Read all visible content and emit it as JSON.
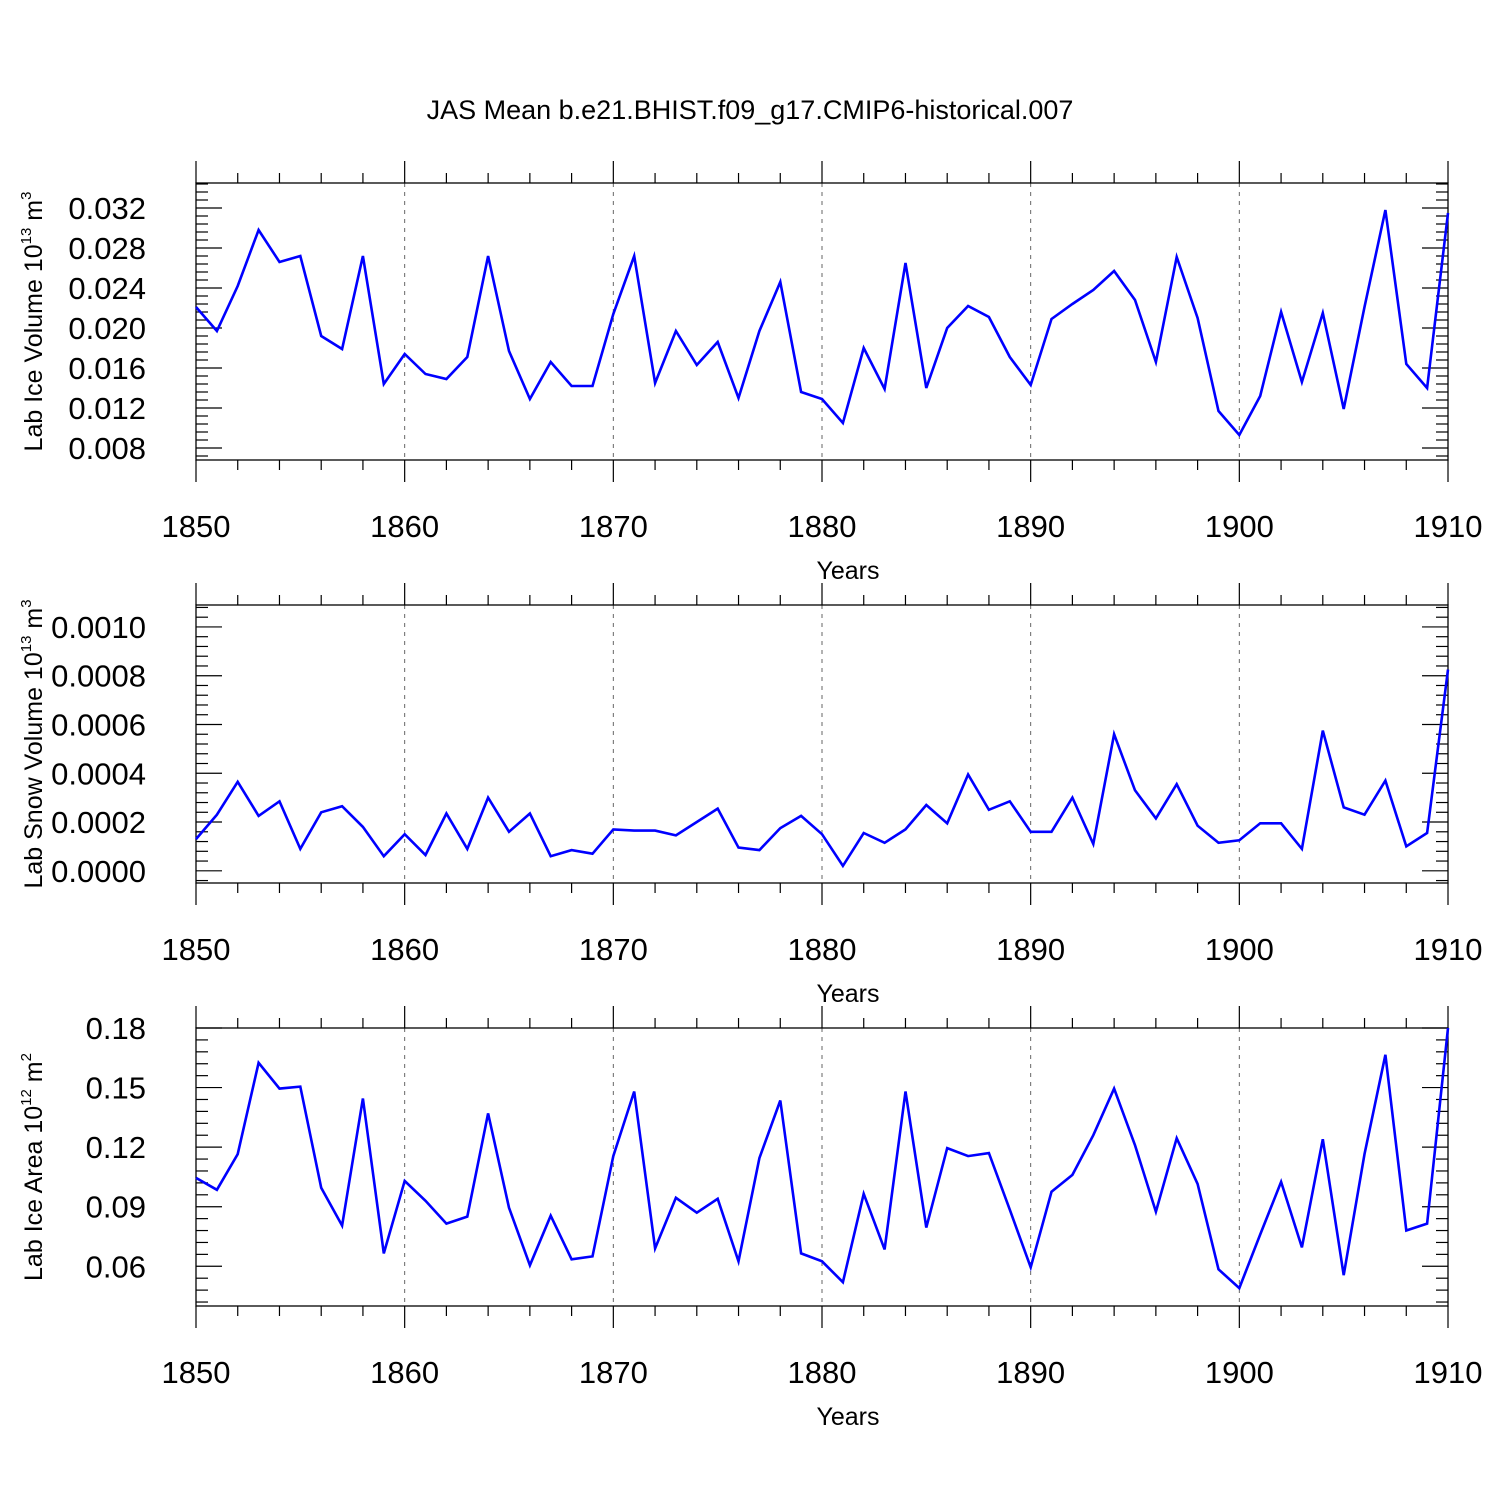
{
  "chart_data": [
    {
      "type": "line",
      "title": "JAS Mean b.e21.BHIST.f09_g17.CMIP6-historical.007",
      "xlabel": "Years",
      "ylabel": {
        "text": "Lab Ice Volume 10",
        "exp": "13",
        "unit": " m",
        "unit_exp": "3"
      },
      "xlim": [
        1850,
        1910
      ],
      "ylim": [
        0.0068,
        0.0345
      ],
      "x_ticks": [
        1850,
        1860,
        1870,
        1880,
        1890,
        1900,
        1910
      ],
      "x_tick_labels": [
        "1850",
        "1860",
        "1870",
        "1880",
        "1890",
        "1900",
        "1910"
      ],
      "y_ticks": [
        0.008,
        0.012,
        0.016,
        0.02,
        0.024,
        0.028,
        0.032
      ],
      "y_tick_labels": [
        "0.008",
        "0.012",
        "0.016",
        "0.020",
        "0.024",
        "0.028",
        "0.032"
      ],
      "grid": "vertical dashed at major x ticks",
      "series": [
        {
          "name": "Lab Ice Volume",
          "color": "#0000ff",
          "values": [
            0.0221,
            0.0197,
            0.0242,
            0.0298,
            0.0266,
            0.0272,
            0.0192,
            0.0179,
            0.0272,
            0.0144,
            0.0174,
            0.0154,
            0.0149,
            0.0171,
            0.0272,
            0.0177,
            0.0129,
            0.0166,
            0.0142,
            0.0142,
            0.0214,
            0.0272,
            0.0145,
            0.0197,
            0.0163,
            0.0186,
            0.013,
            0.0197,
            0.0246,
            0.0136,
            0.0129,
            0.0105,
            0.018,
            0.0139,
            0.0265,
            0.014,
            0.02,
            0.0222,
            0.0211,
            0.0171,
            0.0143,
            0.0209,
            0.0224,
            0.0238,
            0.0257,
            0.0228,
            0.0166,
            0.0271,
            0.021,
            0.0117,
            0.0093,
            0.0132,
            0.0216,
            0.0146,
            0.0215,
            0.0119,
            0.0221,
            0.0318,
            0.0164,
            0.014,
            0.0315
          ]
        }
      ]
    },
    {
      "type": "line",
      "xlabel": "Years",
      "ylabel": {
        "text": "Lab Snow Volume 10",
        "exp": "13",
        "unit": " m",
        "unit_exp": "3"
      },
      "xlim": [
        1850,
        1910
      ],
      "ylim": [
        -5e-05,
        0.00109
      ],
      "x_ticks": [
        1850,
        1860,
        1870,
        1880,
        1890,
        1900,
        1910
      ],
      "x_tick_labels": [
        "1850",
        "1860",
        "1870",
        "1880",
        "1890",
        "1900",
        "1910"
      ],
      "y_ticks": [
        0.0,
        0.0002,
        0.0004,
        0.0006,
        0.0008,
        0.001
      ],
      "y_tick_labels": [
        "0.0000",
        "0.0002",
        "0.0004",
        "0.0006",
        "0.0008",
        "0.0010"
      ],
      "grid": "vertical dashed at major x ticks",
      "series": [
        {
          "name": "Lab Snow Volume",
          "color": "#0000ff",
          "values": [
            0.00013,
            0.00023,
            0.000365,
            0.000225,
            0.000285,
            9e-05,
            0.00024,
            0.000265,
            0.00018,
            6e-05,
            0.00015,
            6.5e-05,
            0.000235,
            9e-05,
            0.0003,
            0.00016,
            0.000235,
            6e-05,
            8.5e-05,
            7e-05,
            0.00017,
            0.000165,
            0.000165,
            0.000145,
            0.0002,
            0.000255,
            9.5e-05,
            8.5e-05,
            0.000175,
            0.000225,
            0.00015,
            2e-05,
            0.000155,
            0.000115,
            0.00017,
            0.00027,
            0.000195,
            0.000395,
            0.00025,
            0.000285,
            0.00016,
            0.00016,
            0.0003,
            0.00011,
            0.00056,
            0.00033,
            0.000215,
            0.000355,
            0.000185,
            0.000115,
            0.000125,
            0.000195,
            0.000195,
            9e-05,
            0.000575,
            0.00026,
            0.00023,
            0.00037,
            0.0001,
            0.000155,
            0.000825
          ]
        }
      ]
    },
    {
      "type": "line",
      "xlabel": "Years",
      "ylabel": {
        "text": "Lab Ice Area 10",
        "exp": "12",
        "unit": " m",
        "unit_exp": "2"
      },
      "xlim": [
        1850,
        1910
      ],
      "ylim": [
        0.04,
        0.18
      ],
      "x_ticks": [
        1850,
        1860,
        1870,
        1880,
        1890,
        1900,
        1910
      ],
      "x_tick_labels": [
        "1850",
        "1860",
        "1870",
        "1880",
        "1890",
        "1900",
        "1910"
      ],
      "y_ticks": [
        0.06,
        0.09,
        0.12,
        0.15,
        0.18
      ],
      "y_tick_labels": [
        "0.06",
        "0.09",
        "0.12",
        "0.15",
        "0.18"
      ],
      "grid": "vertical dashed at major x ticks",
      "series": [
        {
          "name": "Lab Ice Area",
          "color": "#0000ff",
          "values": [
            0.1045,
            0.0985,
            0.1165,
            0.1625,
            0.1495,
            0.1505,
            0.0995,
            0.0805,
            0.1445,
            0.0665,
            0.103,
            0.093,
            0.0815,
            0.085,
            0.137,
            0.0895,
            0.0605,
            0.0855,
            0.0635,
            0.065,
            0.1155,
            0.148,
            0.069,
            0.0945,
            0.087,
            0.094,
            0.0625,
            0.1145,
            0.1435,
            0.0665,
            0.0625,
            0.052,
            0.0965,
            0.0685,
            0.148,
            0.0795,
            0.1195,
            0.1155,
            0.117,
            0.0885,
            0.0595,
            0.0975,
            0.106,
            0.126,
            0.1495,
            0.121,
            0.0875,
            0.1245,
            0.1015,
            0.0585,
            0.049,
            0.076,
            0.1025,
            0.0695,
            0.124,
            0.0555,
            0.1165,
            0.1665,
            0.078,
            0.0815,
            0.18
          ]
        }
      ]
    }
  ]
}
